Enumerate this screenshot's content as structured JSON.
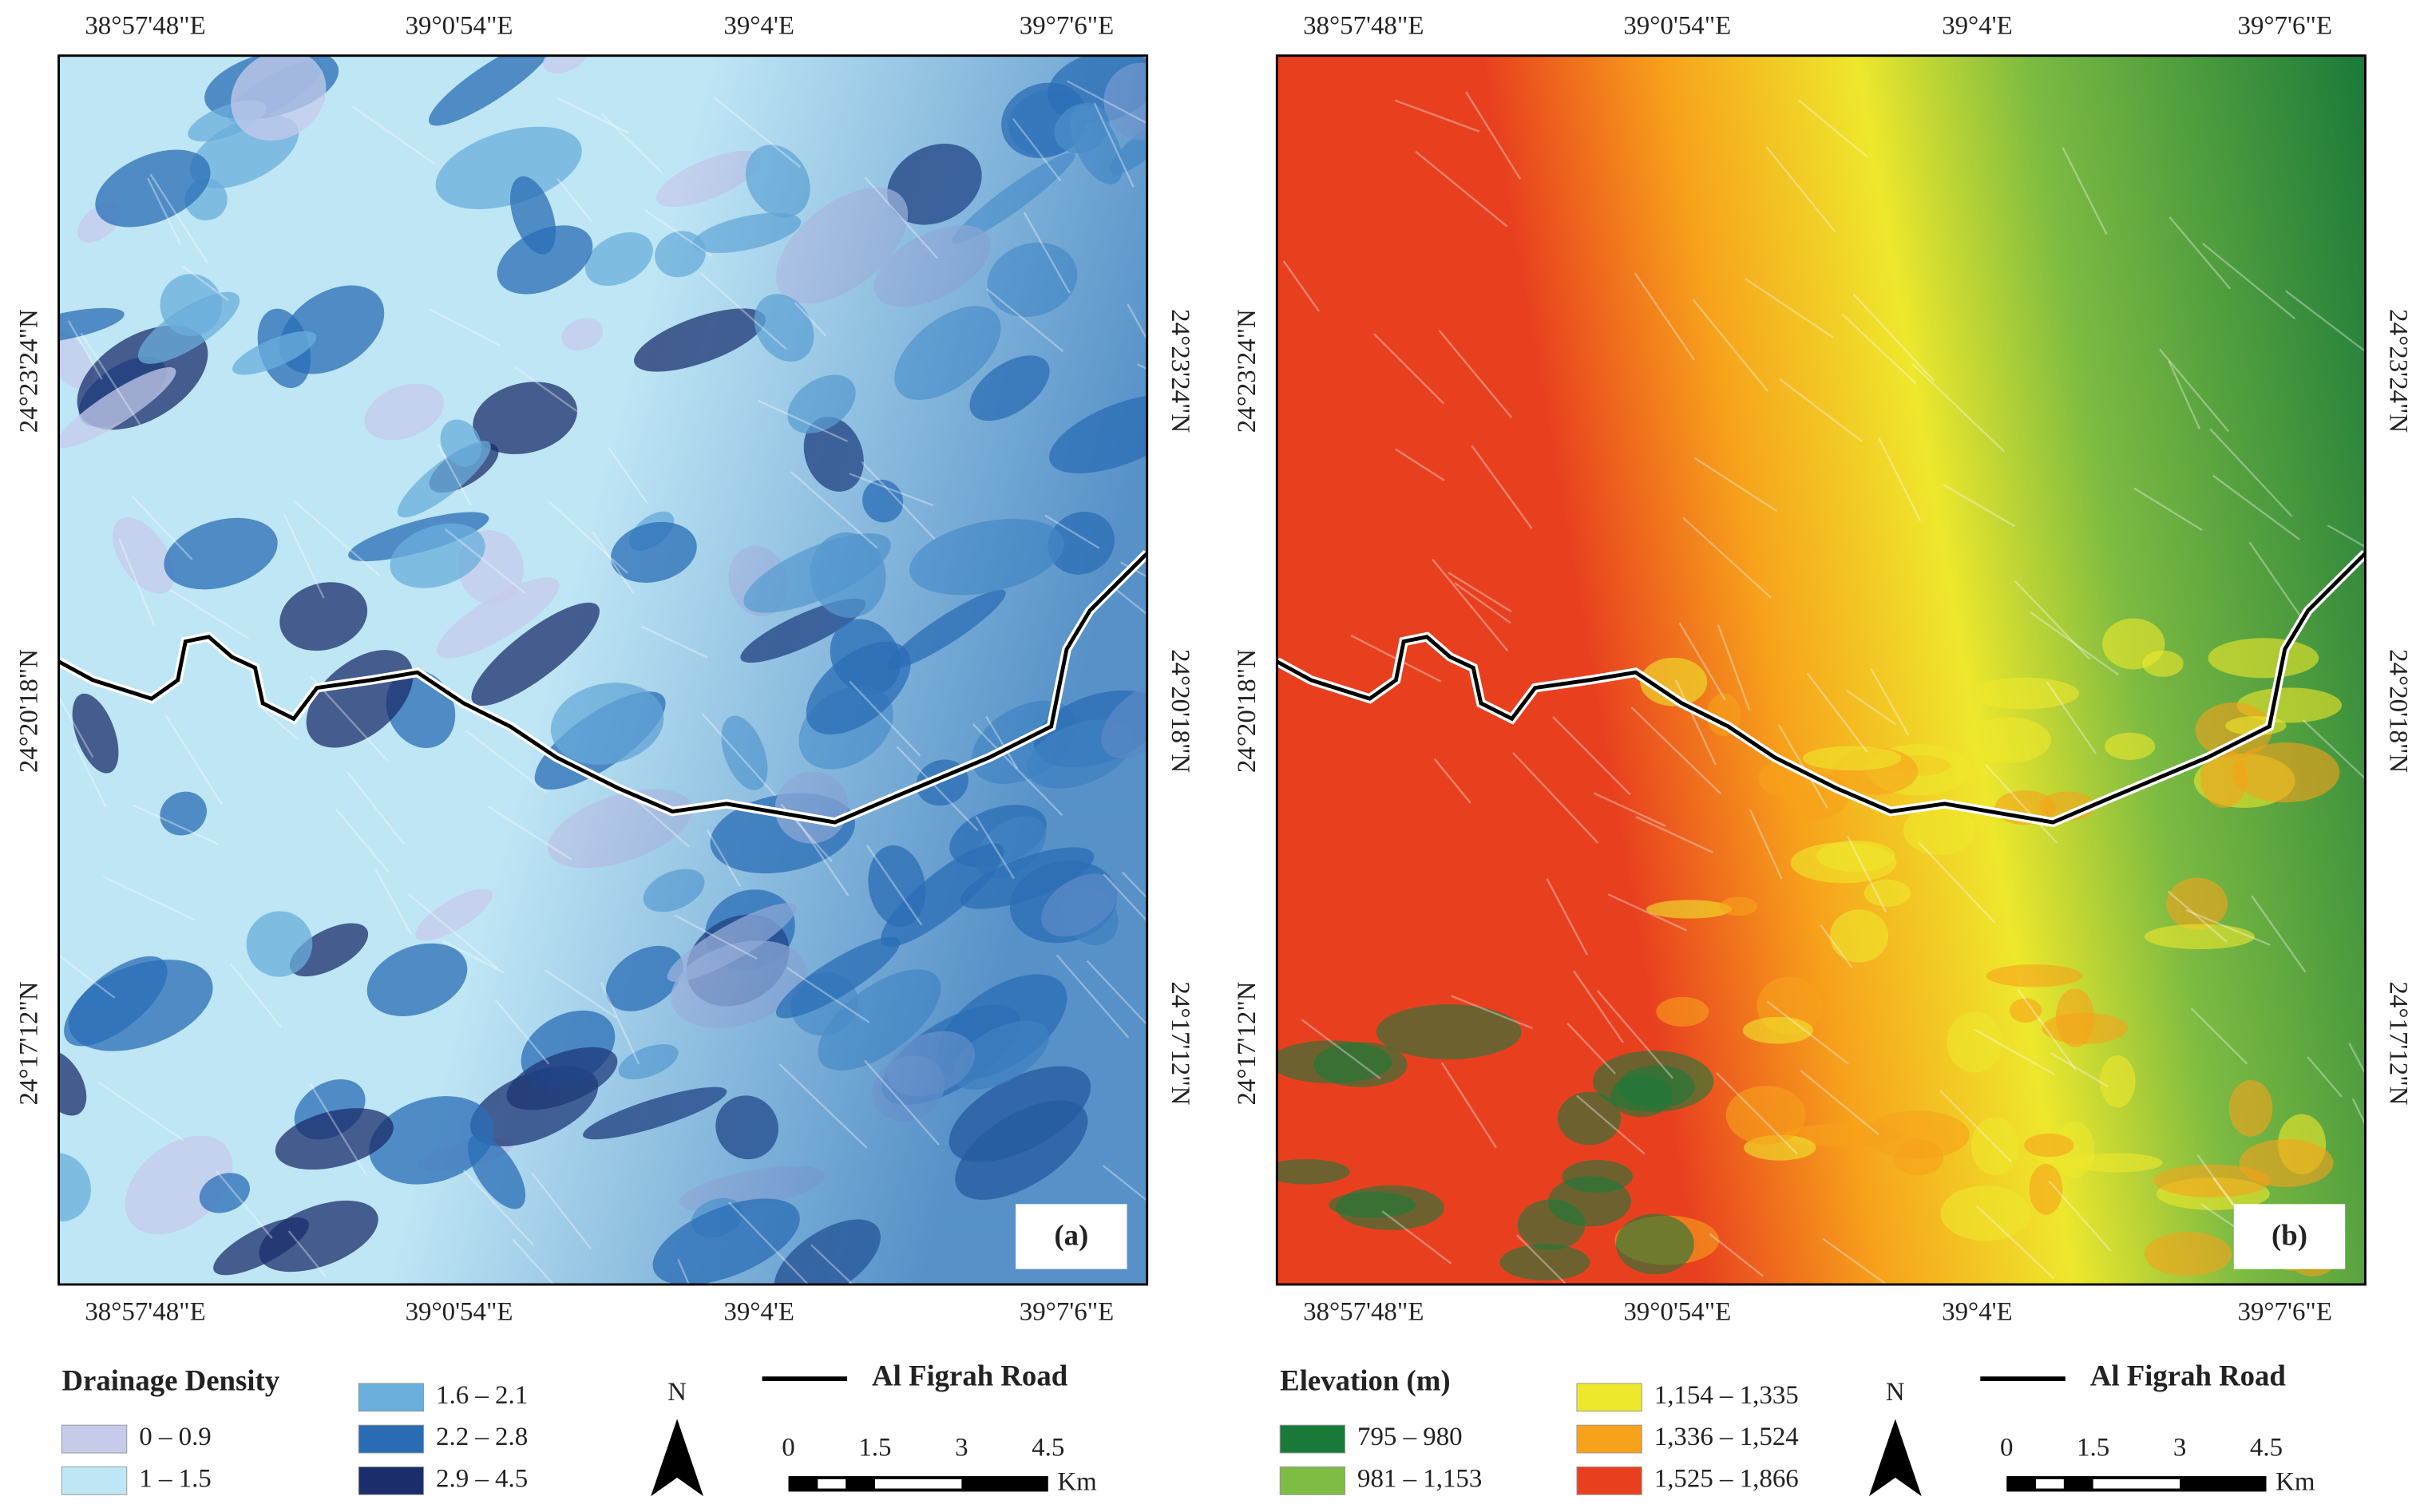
{
  "panels": [
    {
      "label": "(a)",
      "top_labels": [
        "38°57'48\"E",
        "39°0'54\"E",
        "39°4'E",
        "39°7'6\"E"
      ],
      "bottom_labels": [
        "38°57'48\"E",
        "39°0'54\"E",
        "39°4'E",
        "39°7'6\"E"
      ],
      "left_labels": [
        "24°23'24\"N",
        "24°20'18\"N",
        "24°17'12\"N"
      ],
      "right_labels": [
        "24°23'24\"N",
        "24°20'18\"N",
        "24°17'12\"N"
      ],
      "legend": {
        "title": "Drainage Density",
        "items": [
          {
            "label": "0 – 0.9",
            "color": "#c5cbe9"
          },
          {
            "label": "1 – 1.5",
            "color": "#bfe6f5"
          },
          {
            "label": "1.6 – 2.1",
            "color": "#6aaedb"
          },
          {
            "label": "2.2 – 2.8",
            "color": "#2a6db5"
          },
          {
            "label": "2.9 – 4.5",
            "color": "#1b2e6b"
          }
        ]
      },
      "road_label": "Al Figrah Road",
      "north": "N",
      "scale_labels": [
        "0",
        "1.5",
        "3",
        "4.5"
      ],
      "scale_unit": "Km"
    },
    {
      "label": "(b)",
      "top_labels": [
        "38°57'48\"E",
        "39°0'54\"E",
        "39°4'E",
        "39°7'6\"E"
      ],
      "bottom_labels": [
        "38°57'48\"E",
        "39°0'54\"E",
        "39°4'E",
        "39°7'6\"E"
      ],
      "left_labels": [
        "24°23'24\"N",
        "24°20'18\"N",
        "24°17'12\"N"
      ],
      "right_labels": [
        "24°23'24\"N",
        "24°20'18\"N",
        "24°17'12\"N"
      ],
      "legend": {
        "title": "Elevation (m)",
        "items": [
          {
            "label": "795 – 980",
            "color": "#1a7a3a"
          },
          {
            "label": "981 – 1,153",
            "color": "#7dbb42"
          },
          {
            "label": "1,154 – 1,335",
            "color": "#eee82c"
          },
          {
            "label": "1,336 – 1,524",
            "color": "#f7a21b"
          },
          {
            "label": "1,525 – 1,866",
            "color": "#e8401f"
          }
        ]
      },
      "road_label": "Al Figrah Road",
      "north": "N",
      "scale_labels": [
        "0",
        "1.5",
        "3",
        "4.5"
      ],
      "scale_unit": "Km"
    }
  ]
}
